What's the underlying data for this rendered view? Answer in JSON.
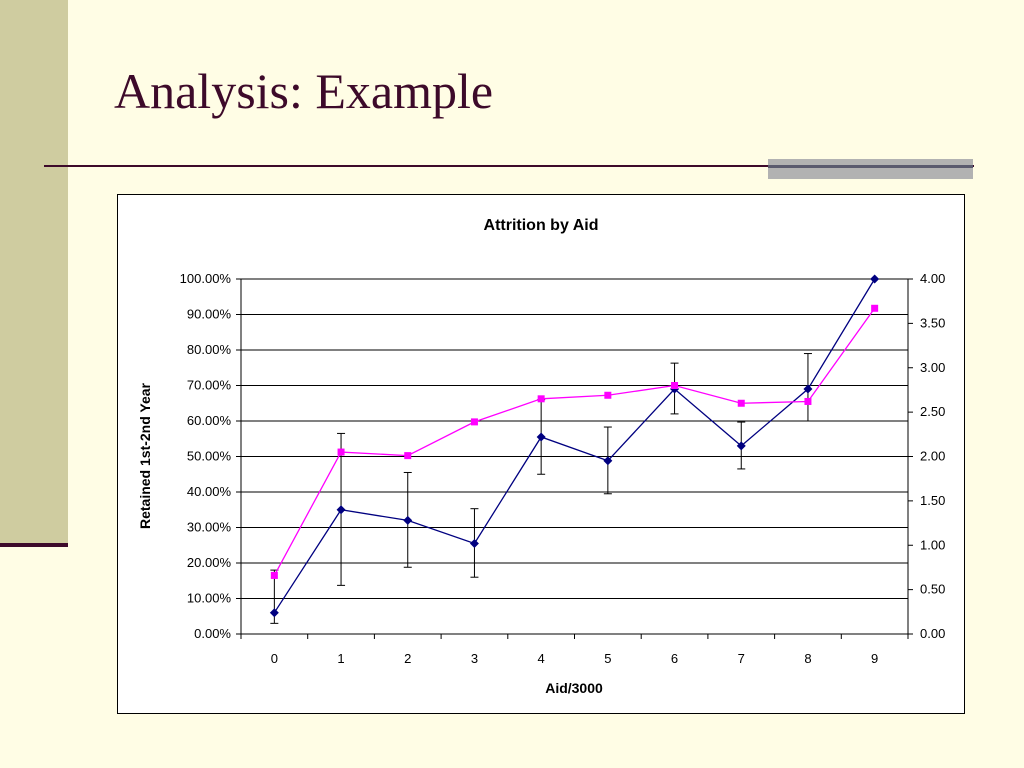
{
  "slide": {
    "title": "Analysis: Example"
  },
  "colors": {
    "background": "#fffde5",
    "strip": "#cfcca0",
    "title": "#3d0a2a",
    "series_retained": "#000080",
    "series_aid": "#ff00ff"
  },
  "chart_data": {
    "type": "line",
    "title": "Attrition by Aid",
    "xlabel": "Aid/3000",
    "ylabel": "Retained 1st-2nd Year",
    "y2label": "",
    "categories": [
      "0",
      "1",
      "2",
      "3",
      "4",
      "5",
      "6",
      "7",
      "8",
      "9"
    ],
    "ylim": [
      0,
      1
    ],
    "y2lim": [
      0,
      4
    ],
    "y_ticks": [
      "0.00%",
      "10.00%",
      "20.00%",
      "30.00%",
      "40.00%",
      "50.00%",
      "60.00%",
      "70.00%",
      "80.00%",
      "90.00%",
      "100.00%"
    ],
    "y2_ticks": [
      "0.00",
      "0.50",
      "1.00",
      "1.50",
      "2.00",
      "2.50",
      "3.00",
      "3.50",
      "4.00"
    ],
    "grid": true,
    "legend": "none",
    "series": [
      {
        "axis": "left",
        "marker": "diamond",
        "color": "#000080",
        "values": [
          0.06,
          0.35,
          0.32,
          0.255,
          0.555,
          0.488,
          0.69,
          0.53,
          0.69,
          1.0
        ],
        "error_low": [
          0.03,
          0.137,
          0.188,
          0.16,
          0.45,
          0.395,
          0.62,
          0.465,
          0.6,
          null
        ],
        "error_high": [
          0.18,
          0.565,
          0.455,
          0.353,
          0.66,
          0.583,
          0.763,
          0.597,
          0.79,
          null
        ]
      },
      {
        "axis": "right",
        "marker": "square",
        "color": "#ff00ff",
        "values": [
          0.66,
          2.05,
          2.01,
          2.39,
          2.65,
          2.69,
          2.8,
          2.6,
          2.62,
          3.67
        ]
      }
    ]
  }
}
